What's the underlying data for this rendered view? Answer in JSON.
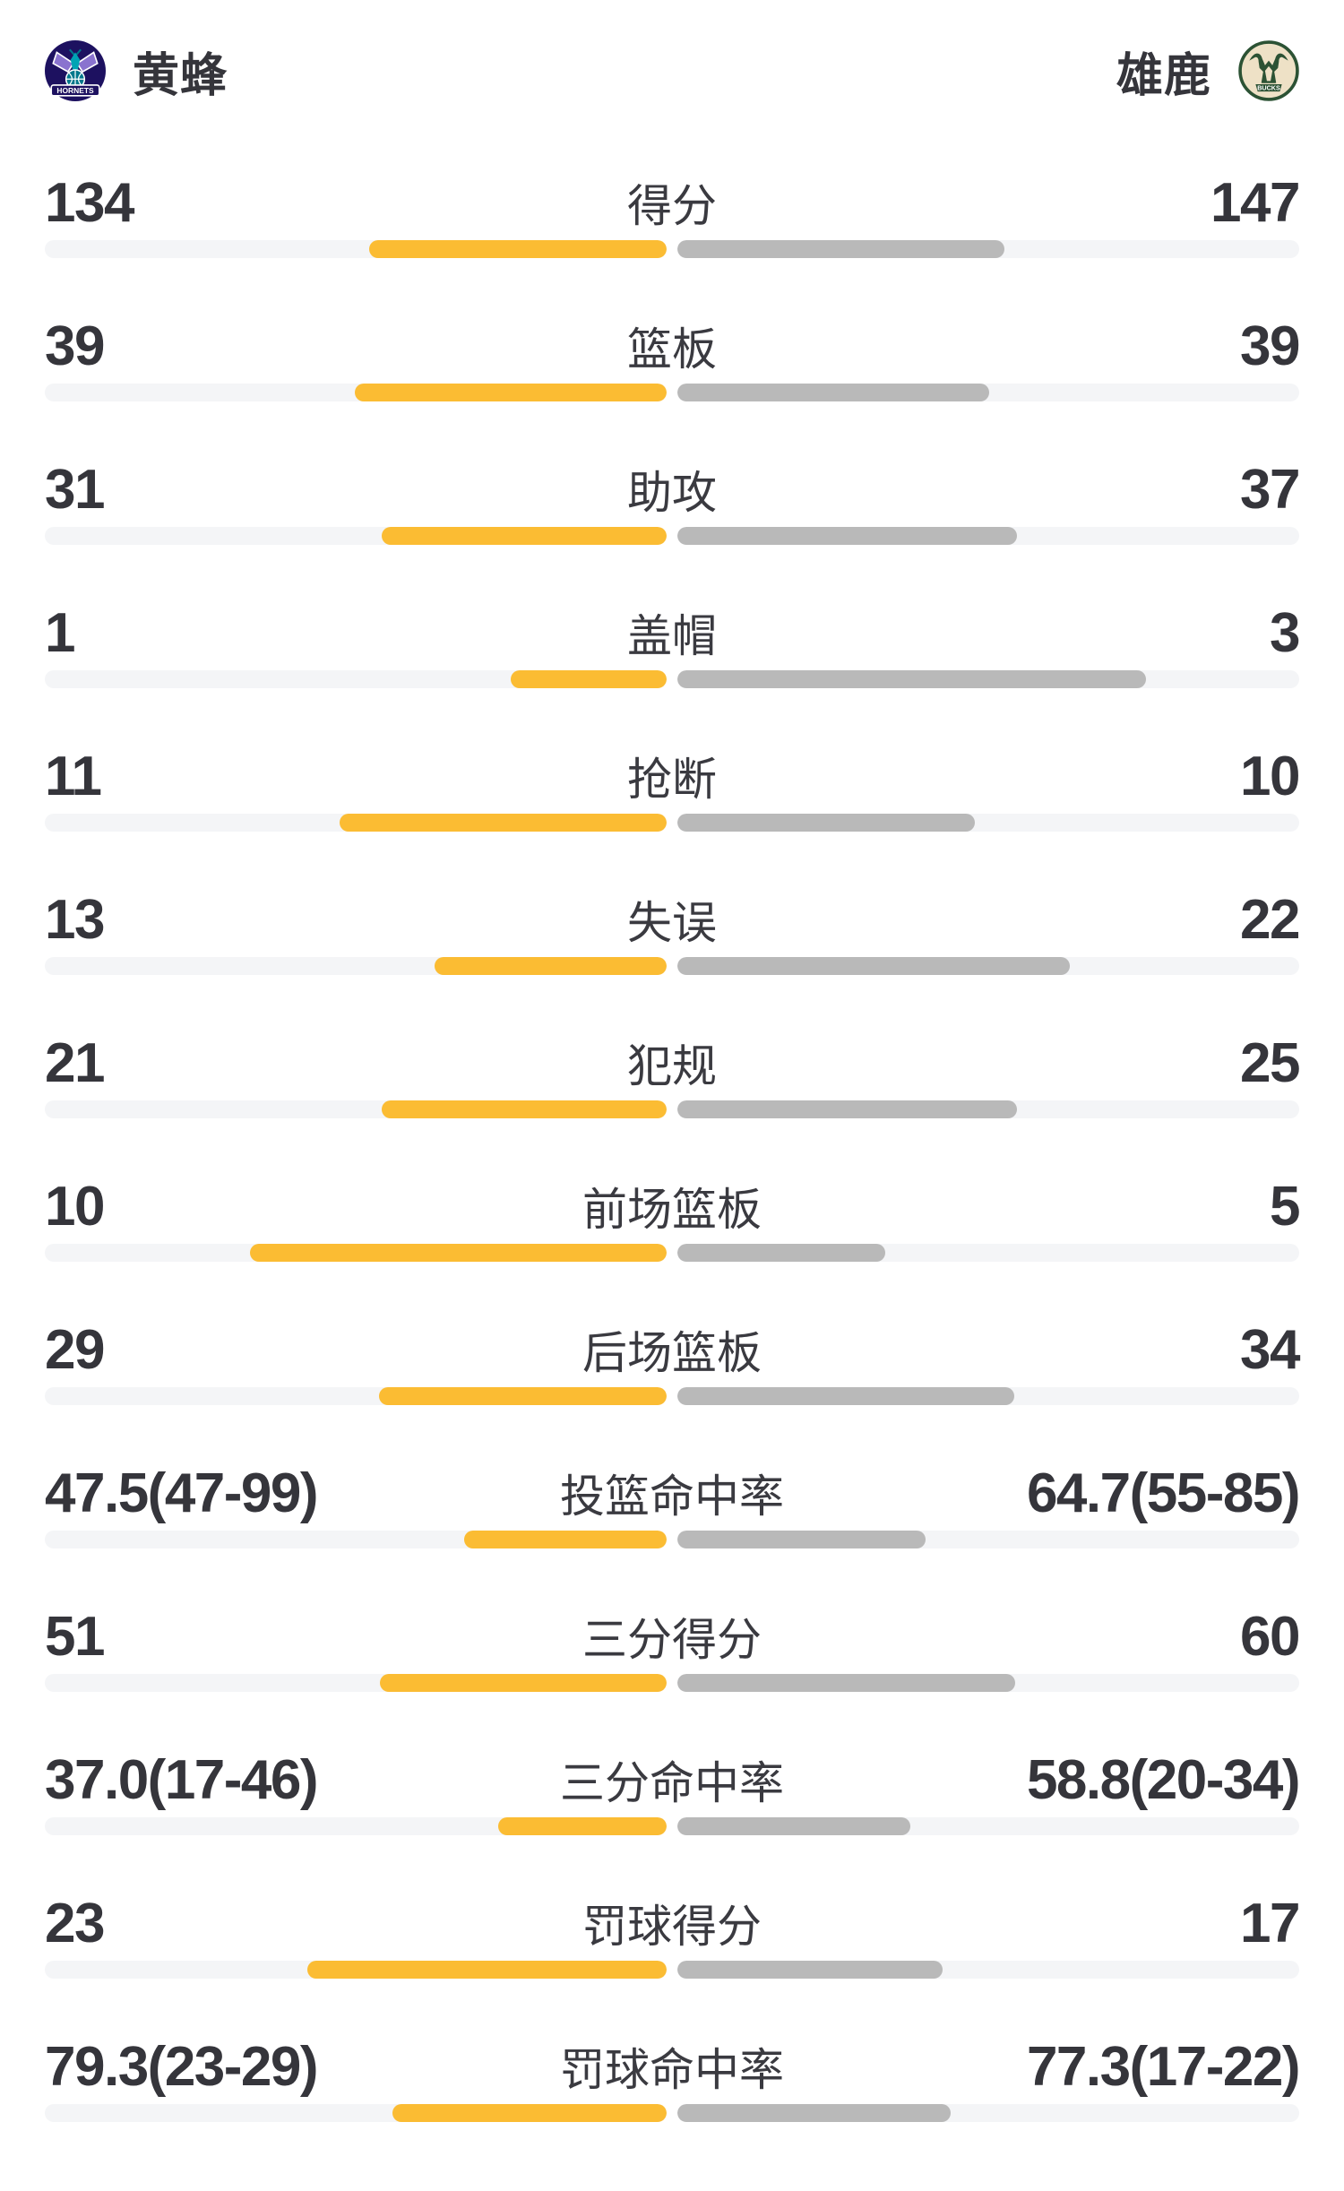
{
  "header": {
    "home": {
      "name": "黄蜂",
      "logo_text": "HORNETS"
    },
    "away": {
      "name": "雄鹿",
      "logo_text": "BUCKS"
    }
  },
  "colors": {
    "home_bar": "#FBBC33",
    "away_bar": "#B9B9B9",
    "track": "#F4F5F7",
    "text": "#35353B",
    "hornets_purple": "#1D1160",
    "hornets_teal": "#00788C",
    "hornets_wing": "#8A73CF",
    "bucks_green": "#2C5234",
    "bucks_cream": "#EEE1C6"
  },
  "stats": [
    {
      "label": "得分",
      "home": "134",
      "away": "147",
      "home_bar_pct": 47.9,
      "away_bar_pct": 52.6
    },
    {
      "label": "篮板",
      "home": "39",
      "away": "39",
      "home_bar_pct": 50.2,
      "away_bar_pct": 50.2
    },
    {
      "label": "助攻",
      "home": "31",
      "away": "37",
      "home_bar_pct": 45.8,
      "away_bar_pct": 54.6
    },
    {
      "label": "盖帽",
      "home": "1",
      "away": "3",
      "home_bar_pct": 25.1,
      "away_bar_pct": 75.4
    },
    {
      "label": "抢断",
      "home": "11",
      "away": "10",
      "home_bar_pct": 52.6,
      "away_bar_pct": 47.9
    },
    {
      "label": "失误",
      "home": "13",
      "away": "22",
      "home_bar_pct": 37.3,
      "away_bar_pct": 63.1
    },
    {
      "label": "犯规",
      "home": "21",
      "away": "25",
      "home_bar_pct": 45.8,
      "away_bar_pct": 54.6
    },
    {
      "label": "前场篮板",
      "home": "10",
      "away": "5",
      "home_bar_pct": 67.0,
      "away_bar_pct": 33.5
    },
    {
      "label": "后场篮板",
      "home": "29",
      "away": "34",
      "home_bar_pct": 46.2,
      "away_bar_pct": 54.2
    },
    {
      "label": "投篮命中率",
      "home": "47.5(47-99)",
      "away": "64.7(55-85)",
      "home_bar_pct": 32.6,
      "away_bar_pct": 39.9
    },
    {
      "label": "三分得分",
      "home": "51",
      "away": "60",
      "home_bar_pct": 46.1,
      "away_bar_pct": 54.3
    },
    {
      "label": "三分命中率",
      "home": "37.0(17-46)",
      "away": "58.8(20-34)",
      "home_bar_pct": 27.1,
      "away_bar_pct": 37.5
    },
    {
      "label": "罚球得分",
      "home": "23",
      "away": "17",
      "home_bar_pct": 57.8,
      "away_bar_pct": 42.7
    },
    {
      "label": "罚球命中率",
      "home": "79.3(23-29)",
      "away": "77.3(17-22)",
      "home_bar_pct": 44.1,
      "away_bar_pct": 43.9
    }
  ]
}
